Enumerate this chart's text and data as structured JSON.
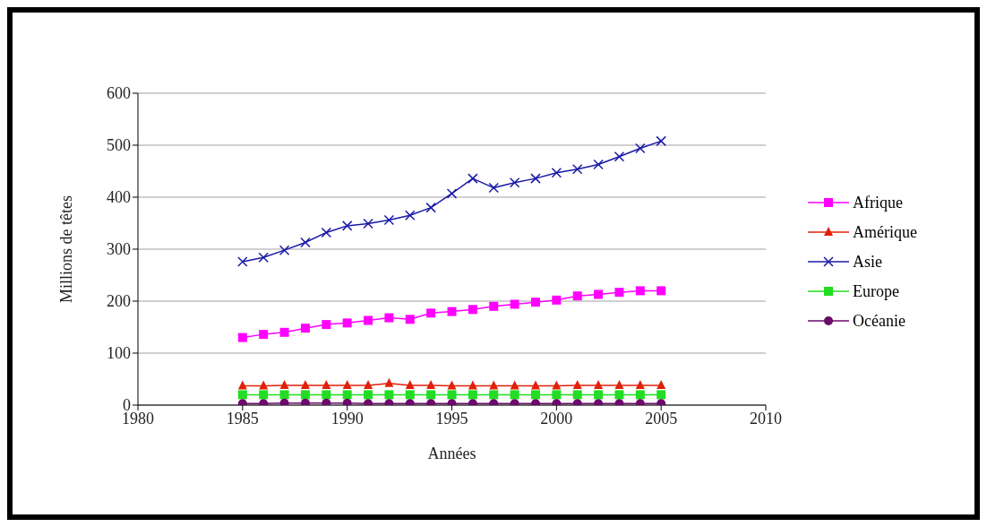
{
  "chart_data": {
    "type": "line",
    "xlabel": "Années",
    "ylabel": "Millions de têtes",
    "x": [
      1985,
      1986,
      1987,
      1988,
      1989,
      1990,
      1991,
      1992,
      1993,
      1994,
      1995,
      1996,
      1997,
      1998,
      1999,
      2000,
      2001,
      2002,
      2003,
      2004,
      2005
    ],
    "series": [
      {
        "name": "Afrique",
        "color": "#ff00ff",
        "marker": "square",
        "values": [
          130,
          136,
          140,
          148,
          155,
          158,
          163,
          168,
          165,
          177,
          180,
          184,
          190,
          194,
          198,
          202,
          210,
          213,
          217,
          220,
          220
        ]
      },
      {
        "name": "Amérique",
        "color": "#e0200a",
        "marker": "triangle",
        "values": [
          37,
          37,
          38,
          38,
          38,
          38,
          38,
          42,
          38,
          38,
          37,
          37,
          37,
          37,
          37,
          37,
          38,
          38,
          38,
          38,
          38
        ]
      },
      {
        "name": "Asie",
        "color": "#1a1aa8",
        "marker": "cross",
        "values": [
          276,
          284,
          298,
          313,
          332,
          345,
          349,
          356,
          365,
          380,
          407,
          436,
          418,
          428,
          436,
          447,
          454,
          463,
          478,
          494,
          508
        ]
      },
      {
        "name": "Europe",
        "color": "#22dd22",
        "marker": "square",
        "values": [
          20,
          20,
          20,
          20,
          20,
          20,
          20,
          20,
          20,
          20,
          20,
          20,
          20,
          20,
          20,
          20,
          20,
          20,
          20,
          20,
          20
        ]
      },
      {
        "name": "Océanie",
        "color": "#6a0a6a",
        "marker": "circle",
        "values": [
          3,
          3,
          4,
          4,
          4,
          4,
          3,
          3,
          3,
          3,
          3,
          3,
          3,
          3,
          3,
          3,
          3,
          3,
          3,
          3,
          3
        ]
      }
    ],
    "xlim": [
      1980,
      2010
    ],
    "xticks": [
      1980,
      1985,
      1990,
      1995,
      2000,
      2005,
      2010
    ],
    "ylim": [
      0,
      600
    ],
    "yticks": [
      0,
      100,
      200,
      300,
      400,
      500,
      600
    ],
    "grid": "y",
    "legend": "right",
    "line_style": "solid"
  }
}
